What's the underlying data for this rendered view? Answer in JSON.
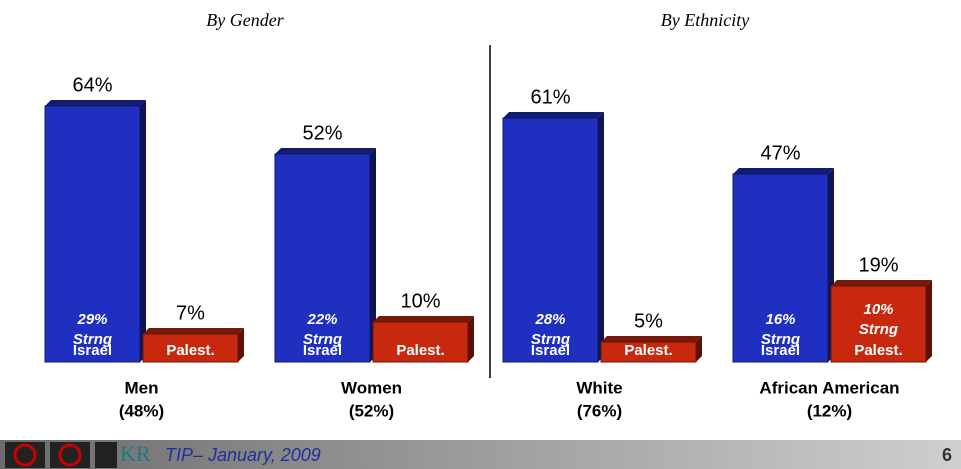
{
  "chart_data": [
    {
      "type": "bar",
      "title": "By Gender",
      "categories": [
        "Men",
        "Women"
      ],
      "category_shares": [
        "(48%)",
        "(52%)"
      ],
      "strong_text": "Strng",
      "series": [
        {
          "name": "Israel",
          "color": "#1f2fc0",
          "values": [
            64,
            52
          ],
          "value_labels": [
            "64%",
            "52%"
          ],
          "strong_values": [
            29,
            22
          ],
          "strong_labels": [
            "29%",
            "22%"
          ]
        },
        {
          "name": "Palest.",
          "color": "#c8280e",
          "values": [
            7,
            10
          ],
          "value_labels": [
            "7%",
            "10%"
          ],
          "strong_values": [
            null,
            null
          ],
          "strong_labels": [
            null,
            null
          ]
        }
      ]
    },
    {
      "type": "bar",
      "title": "By Ethnicity",
      "categories": [
        "White",
        "African American"
      ],
      "category_shares": [
        "(76%)",
        "(12%)"
      ],
      "strong_text": "Strng",
      "series": [
        {
          "name": "Israel",
          "color": "#1f2fc0",
          "values": [
            61,
            47
          ],
          "value_labels": [
            "61%",
            "47%"
          ],
          "strong_values": [
            28,
            16
          ],
          "strong_labels": [
            "28%",
            "16%"
          ]
        },
        {
          "name": "Palest.",
          "color": "#c8280e",
          "values": [
            5,
            19
          ],
          "value_labels": [
            "5%",
            "19%"
          ],
          "strong_values": [
            null,
            10
          ],
          "strong_labels": [
            null,
            "10%"
          ]
        }
      ]
    }
  ],
  "footer": {
    "text": "TIP– January, 2009",
    "page": "6"
  }
}
